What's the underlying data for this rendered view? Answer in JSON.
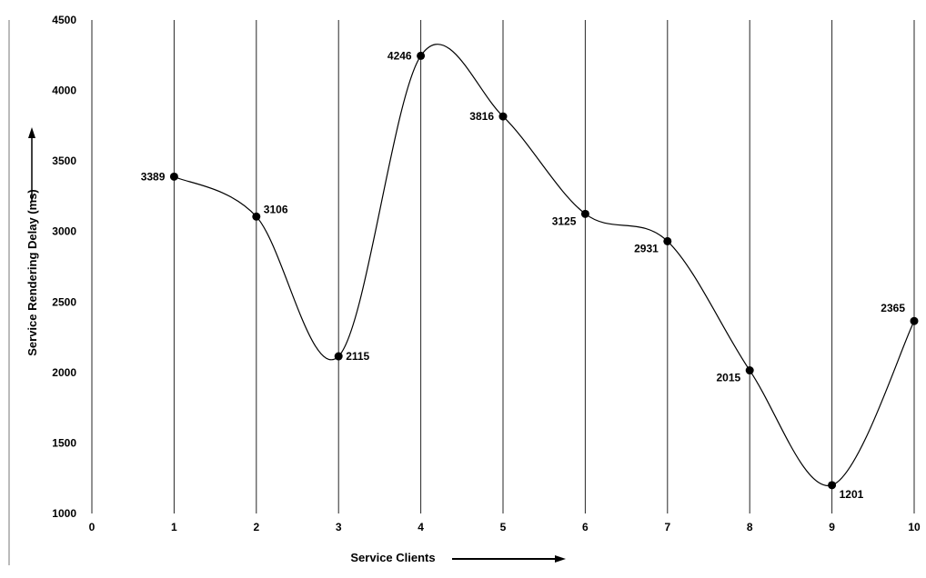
{
  "chart_data": {
    "type": "line",
    "smooth": true,
    "xlabel": "Service Clients",
    "ylabel": "Service Rendering Delay (ms)",
    "xlim": [
      0,
      10
    ],
    "ylim": [
      1000,
      4500
    ],
    "x_ticks": [
      "0",
      "1",
      "2",
      "3",
      "4",
      "5",
      "6",
      "7",
      "8",
      "9",
      "10"
    ],
    "y_ticks": [
      "1000",
      "1500",
      "2000",
      "2500",
      "3000",
      "3500",
      "4000",
      "4500"
    ],
    "vertical_gridlines": true,
    "horizontal_gridlines": false,
    "legend": "none",
    "series": [
      {
        "x": [
          1,
          2,
          3,
          4,
          5,
          6,
          7,
          8,
          9,
          10
        ],
        "y": [
          3389,
          3106,
          2115,
          4246,
          3816,
          3125,
          2931,
          2015,
          1201,
          2365
        ],
        "labels": [
          "3389",
          "3106",
          "2115",
          "4246",
          "3816",
          "3125",
          "2931",
          "2015",
          "1201",
          "2365"
        ],
        "color": "#000000",
        "marker": "circle"
      }
    ]
  }
}
